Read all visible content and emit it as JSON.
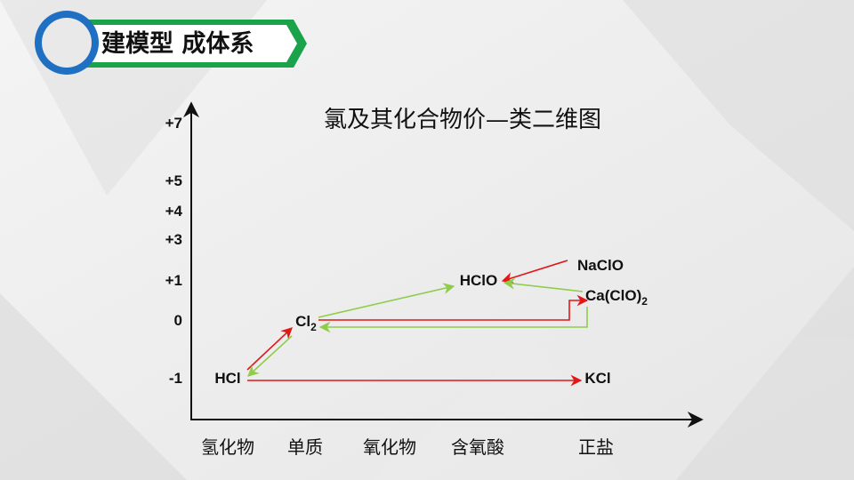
{
  "header": {
    "title": "建模型 成体系"
  },
  "diagram": {
    "title": "氯及其化合物价—类二维图",
    "y_labels": [
      "+7",
      "+5",
      "+4",
      "+3",
      "+1",
      "0",
      "-1"
    ],
    "x_labels": [
      "氢化物",
      "单质",
      "氧化物",
      "含氧酸",
      "正盐"
    ],
    "nodes": [
      {
        "label": "HCl"
      },
      {
        "label": "Cl",
        "sub": "2"
      },
      {
        "label": "HClO"
      },
      {
        "label": "NaClO"
      },
      {
        "label": "Ca(ClO)",
        "sub": "2"
      },
      {
        "label": "KCl"
      }
    ]
  }
}
